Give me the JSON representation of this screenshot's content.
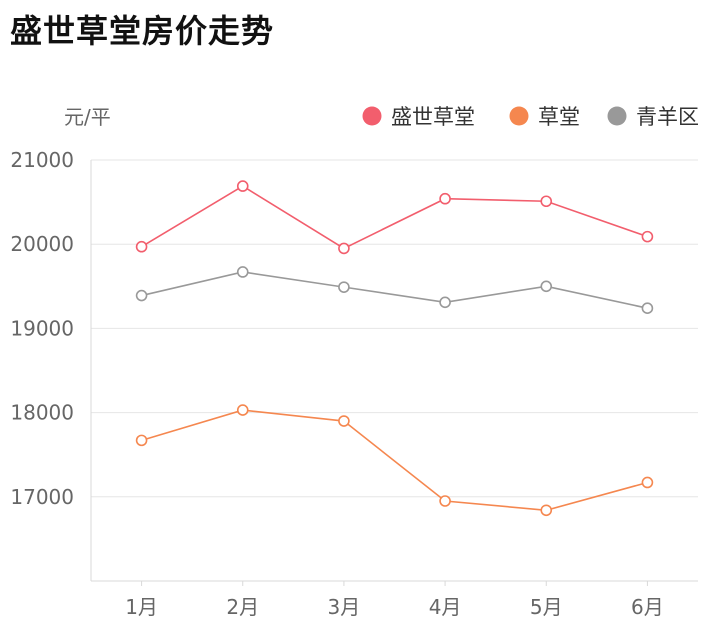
{
  "chart_data": {
    "type": "line",
    "title": "盛世草堂房价走势",
    "y_unit": "元/平",
    "categories": [
      "1月",
      "2月",
      "3月",
      "4月",
      "5月",
      "6月"
    ],
    "ylim": [
      16000,
      21000
    ],
    "yticks": [
      17000,
      18000,
      19000,
      20000,
      21000
    ],
    "grid": true,
    "legend_position": "top-right",
    "series": [
      {
        "name": "盛世草堂",
        "color": "#f25e6d",
        "values": [
          19970,
          20690,
          19950,
          20540,
          20510,
          20090
        ]
      },
      {
        "name": "草堂",
        "color": "#f5874f",
        "values": [
          17670,
          18030,
          17900,
          16950,
          16840,
          17170
        ]
      },
      {
        "name": "青羊区",
        "color": "#999999",
        "values": [
          19390,
          19670,
          19490,
          19310,
          19500,
          19240
        ]
      }
    ]
  }
}
